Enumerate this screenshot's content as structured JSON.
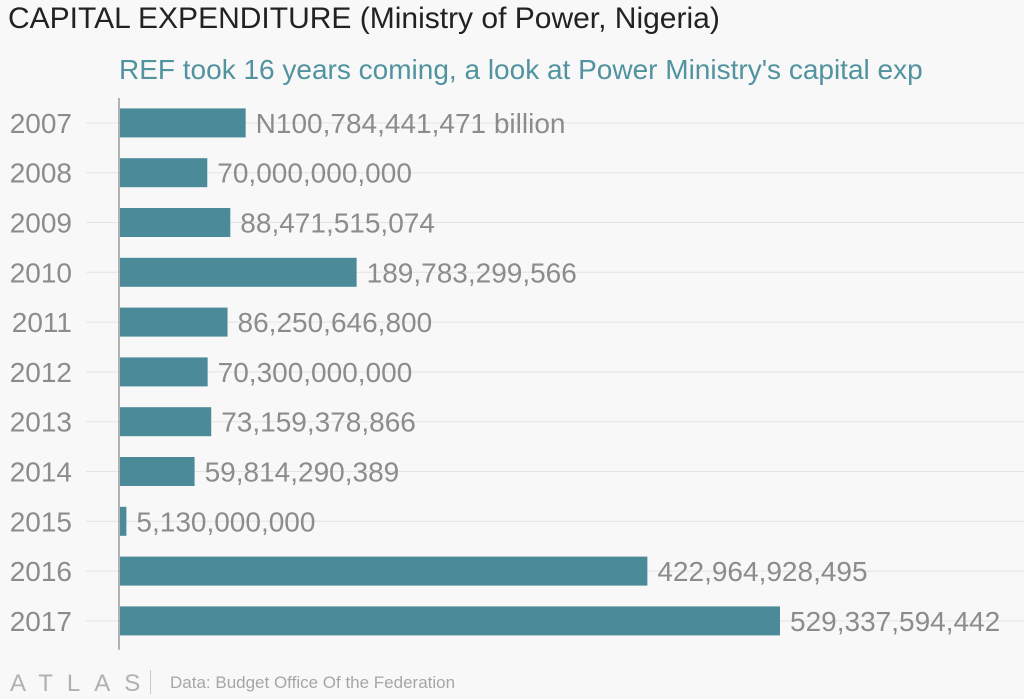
{
  "header": {
    "title": "CAPITAL EXPENDITURE (Ministry of Power, Nigeria)",
    "subtitle": "REF took 16 years coming, a look at Power Ministry's capital exp"
  },
  "footer": {
    "logo": "ATLAS",
    "source": "Data: Budget Office Of the Federation"
  },
  "colors": {
    "bar": "#4a8a99",
    "label": "#8c8c8c",
    "tick": "#8c8c8c",
    "grid": "#e4e4e4",
    "axis": "#9a9a9a"
  },
  "chart_data": {
    "type": "bar",
    "orientation": "horizontal",
    "title": "CAPITAL EXPENDITURE (Ministry of Power, Nigeria)",
    "subtitle": "REF took 16 years coming, a look at Power Ministry's capital exp",
    "categories": [
      "2007",
      "2008",
      "2009",
      "2010",
      "2011",
      "2012",
      "2013",
      "2014",
      "2015",
      "2016",
      "2017"
    ],
    "values": [
      100784441471,
      70000000000,
      88471515074,
      189783299566,
      86250646800,
      70300000000,
      73159378866,
      59814290389,
      5130000000,
      422964928495,
      529337594442
    ],
    "data_labels": [
      "N100,784,441,471 billion",
      "70,000,000,000",
      "88,471,515,074",
      "189,783,299,566",
      "86,250,646,800",
      "70,300,000,000",
      "73,159,378,866",
      "59,814,290,389",
      "5,130,000,000",
      "422,964,928,495",
      "529,337,594,442"
    ],
    "xlim": [
      0,
      529337594442
    ],
    "grid": "horizontal",
    "legend": "none"
  }
}
